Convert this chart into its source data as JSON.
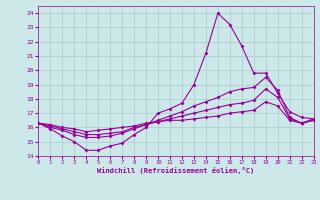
{
  "xlabel": "Windchill (Refroidissement éolien,°C)",
  "bg_color": "#cce8e8",
  "grid_color": "#aacccc",
  "line_color": "#990099",
  "xlim": [
    0,
    23
  ],
  "ylim": [
    14,
    24.5
  ],
  "yticks": [
    14,
    15,
    16,
    17,
    18,
    19,
    20,
    21,
    22,
    23,
    24
  ],
  "xticks": [
    0,
    1,
    2,
    3,
    4,
    5,
    6,
    7,
    8,
    9,
    10,
    11,
    12,
    13,
    14,
    15,
    16,
    17,
    18,
    19,
    20,
    21,
    22,
    23
  ],
  "series": [
    {
      "x": [
        0,
        1,
        2,
        3,
        4,
        5,
        6,
        7,
        8,
        9,
        10,
        11,
        12,
        13,
        14,
        15,
        16,
        17,
        18,
        19,
        20,
        21,
        22,
        23
      ],
      "y": [
        16.3,
        15.9,
        15.4,
        15.0,
        14.4,
        14.4,
        14.7,
        14.9,
        15.5,
        16.0,
        17.0,
        17.3,
        17.7,
        19.0,
        21.2,
        24.0,
        23.2,
        21.7,
        19.8,
        19.8,
        18.4,
        17.1,
        16.7,
        16.6
      ]
    },
    {
      "x": [
        0,
        1,
        2,
        3,
        4,
        5,
        6,
        7,
        8,
        9,
        10,
        11,
        12,
        13,
        14,
        15,
        16,
        17,
        18,
        19,
        20,
        21,
        22,
        23
      ],
      "y": [
        16.3,
        16.0,
        15.8,
        15.5,
        15.3,
        15.3,
        15.4,
        15.6,
        15.9,
        16.2,
        16.5,
        16.8,
        17.1,
        17.5,
        17.8,
        18.1,
        18.5,
        18.7,
        18.8,
        19.5,
        18.6,
        16.7,
        16.3,
        16.5
      ]
    },
    {
      "x": [
        0,
        1,
        2,
        3,
        4,
        5,
        6,
        7,
        8,
        9,
        10,
        11,
        12,
        13,
        14,
        15,
        16,
        17,
        18,
        19,
        20,
        21,
        22,
        23
      ],
      "y": [
        16.3,
        16.1,
        15.9,
        15.7,
        15.5,
        15.5,
        15.6,
        15.7,
        16.0,
        16.2,
        16.4,
        16.6,
        16.8,
        17.0,
        17.2,
        17.4,
        17.6,
        17.7,
        17.9,
        18.7,
        18.1,
        16.6,
        16.3,
        16.5
      ]
    },
    {
      "x": [
        0,
        1,
        2,
        3,
        4,
        5,
        6,
        7,
        8,
        9,
        10,
        11,
        12,
        13,
        14,
        15,
        16,
        17,
        18,
        19,
        20,
        21,
        22,
        23
      ],
      "y": [
        16.3,
        16.2,
        16.0,
        15.9,
        15.7,
        15.8,
        15.9,
        16.0,
        16.1,
        16.3,
        16.4,
        16.5,
        16.5,
        16.6,
        16.7,
        16.8,
        17.0,
        17.1,
        17.2,
        17.8,
        17.5,
        16.5,
        16.3,
        16.6
      ]
    }
  ]
}
